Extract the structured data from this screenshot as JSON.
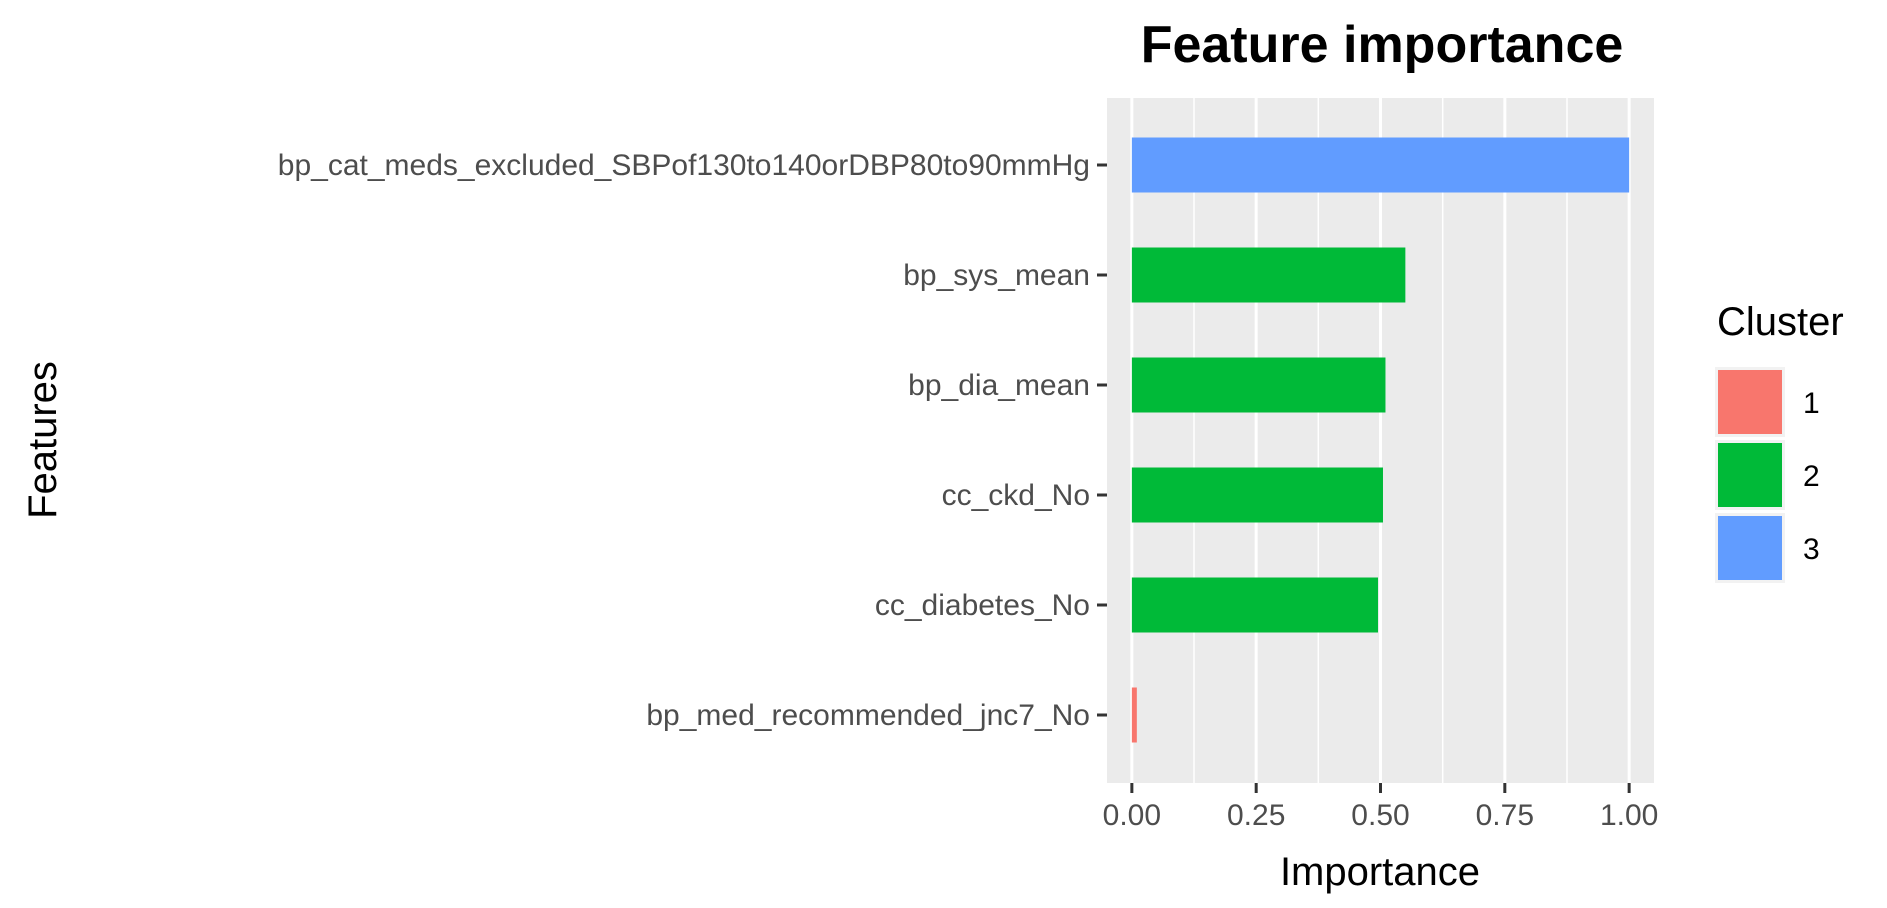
{
  "chart_data": {
    "type": "bar",
    "orientation": "horizontal",
    "title": "Feature importance",
    "xlabel": "Importance",
    "ylabel": "Features",
    "xlim": [
      -0.05,
      1.05
    ],
    "xticks": [
      "0.00",
      "0.25",
      "0.50",
      "0.75",
      "1.00"
    ],
    "xtick_values": [
      0,
      0.25,
      0.5,
      0.75,
      1.0
    ],
    "grid": true,
    "categories": [
      "bp_cat_meds_excluded_SBPof130to140orDBP80to90mmHg",
      "bp_sys_mean",
      "bp_dia_mean",
      "cc_ckd_No",
      "cc_diabetes_No",
      "bp_med_recommended_jnc7_No"
    ],
    "values": [
      1.0,
      0.55,
      0.51,
      0.505,
      0.495,
      0.01
    ],
    "cluster": [
      "3",
      "2",
      "2",
      "2",
      "2",
      "1"
    ],
    "legend": {
      "title": "Cluster",
      "position": "right",
      "entries": [
        {
          "label": "1",
          "color": "#F8766D"
        },
        {
          "label": "2",
          "color": "#00BA38"
        },
        {
          "label": "3",
          "color": "#619CFF"
        }
      ]
    },
    "panel_background": "#EBEBEB",
    "grid_color": "#FFFFFF"
  }
}
